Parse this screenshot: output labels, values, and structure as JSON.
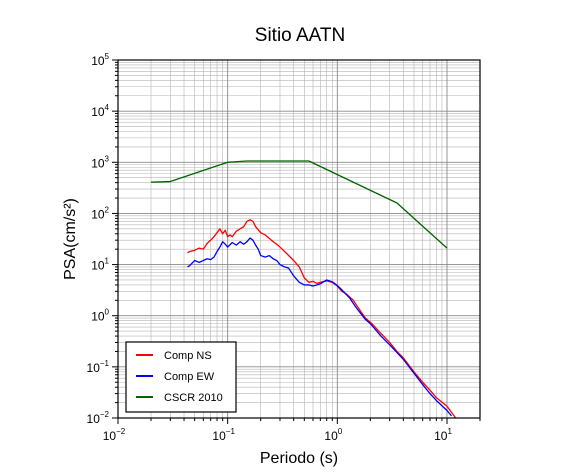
{
  "chart_data": {
    "type": "line",
    "title": "Sitio AATN",
    "xlabel": "Periodo (s)",
    "ylabel": "PSA(cm/s²)",
    "xscale": "log",
    "yscale": "log",
    "xlim": [
      0.01,
      20
    ],
    "ylim": [
      0.01,
      100000
    ],
    "grid": true,
    "legend_position": "bottom-left",
    "x_ticks": [
      {
        "base": "10",
        "exp": "−2"
      },
      {
        "base": "10",
        "exp": "−1"
      },
      {
        "base": "10",
        "exp": "0"
      },
      {
        "base": "10",
        "exp": "1"
      }
    ],
    "y_ticks": [
      {
        "base": "10",
        "exp": "−2"
      },
      {
        "base": "10",
        "exp": "−1"
      },
      {
        "base": "10",
        "exp": "0"
      },
      {
        "base": "10",
        "exp": "1"
      },
      {
        "base": "10",
        "exp": "2"
      },
      {
        "base": "10",
        "exp": "3"
      },
      {
        "base": "10",
        "exp": "4"
      },
      {
        "base": "10",
        "exp": "5"
      }
    ],
    "series": [
      {
        "name": "Comp NS",
        "color": "#ff0000",
        "points": [
          [
            0.043,
            17
          ],
          [
            0.045,
            18
          ],
          [
            0.05,
            19
          ],
          [
            0.055,
            21
          ],
          [
            0.06,
            20
          ],
          [
            0.065,
            26
          ],
          [
            0.07,
            30
          ],
          [
            0.075,
            35
          ],
          [
            0.08,
            42
          ],
          [
            0.085,
            50
          ],
          [
            0.09,
            40
          ],
          [
            0.095,
            47
          ],
          [
            0.1,
            35
          ],
          [
            0.105,
            38
          ],
          [
            0.11,
            35
          ],
          [
            0.12,
            45
          ],
          [
            0.13,
            50
          ],
          [
            0.14,
            55
          ],
          [
            0.15,
            70
          ],
          [
            0.16,
            75
          ],
          [
            0.17,
            70
          ],
          [
            0.18,
            55
          ],
          [
            0.2,
            42
          ],
          [
            0.22,
            38
          ],
          [
            0.25,
            30
          ],
          [
            0.28,
            25
          ],
          [
            0.3,
            22
          ],
          [
            0.35,
            16
          ],
          [
            0.4,
            12
          ],
          [
            0.45,
            9
          ],
          [
            0.5,
            5.5
          ],
          [
            0.55,
            4.5
          ],
          [
            0.6,
            4.7
          ],
          [
            0.65,
            4.3
          ],
          [
            0.7,
            4.5
          ],
          [
            0.8,
            4.8
          ],
          [
            0.9,
            4.5
          ],
          [
            1.0,
            3.8
          ],
          [
            1.1,
            3.0
          ],
          [
            1.2,
            2.7
          ],
          [
            1.4,
            2.0
          ],
          [
            1.6,
            1.3
          ],
          [
            1.8,
            0.9
          ],
          [
            2.0,
            0.75
          ],
          [
            2.5,
            0.45
          ],
          [
            3.0,
            0.3
          ],
          [
            3.5,
            0.2
          ],
          [
            4.0,
            0.15
          ],
          [
            5.0,
            0.08
          ],
          [
            6.0,
            0.05
          ],
          [
            7.0,
            0.035
          ],
          [
            8.0,
            0.025
          ],
          [
            10.0,
            0.017
          ],
          [
            12.0,
            0.01
          ]
        ]
      },
      {
        "name": "Comp EW",
        "color": "#0000ff",
        "points": [
          [
            0.043,
            9
          ],
          [
            0.045,
            9.5
          ],
          [
            0.05,
            12
          ],
          [
            0.055,
            11
          ],
          [
            0.06,
            12
          ],
          [
            0.065,
            13
          ],
          [
            0.07,
            12.5
          ],
          [
            0.075,
            14
          ],
          [
            0.08,
            18
          ],
          [
            0.085,
            22
          ],
          [
            0.09,
            28
          ],
          [
            0.095,
            25
          ],
          [
            0.1,
            22
          ],
          [
            0.11,
            27
          ],
          [
            0.12,
            24
          ],
          [
            0.13,
            28
          ],
          [
            0.14,
            25
          ],
          [
            0.15,
            28
          ],
          [
            0.16,
            33
          ],
          [
            0.17,
            30
          ],
          [
            0.18,
            24
          ],
          [
            0.19,
            20
          ],
          [
            0.2,
            15
          ],
          [
            0.22,
            14
          ],
          [
            0.24,
            15
          ],
          [
            0.26,
            13
          ],
          [
            0.28,
            12
          ],
          [
            0.3,
            10
          ],
          [
            0.33,
            9
          ],
          [
            0.36,
            8.5
          ],
          [
            0.4,
            6
          ],
          [
            0.45,
            4.5
          ],
          [
            0.5,
            4.0
          ],
          [
            0.55,
            4.0
          ],
          [
            0.6,
            3.8
          ],
          [
            0.7,
            4.2
          ],
          [
            0.8,
            5.0
          ],
          [
            0.9,
            4.6
          ],
          [
            1.0,
            3.9
          ],
          [
            1.1,
            3.2
          ],
          [
            1.3,
            2.2
          ],
          [
            1.5,
            1.4
          ],
          [
            1.8,
            0.85
          ],
          [
            2.0,
            0.7
          ],
          [
            2.5,
            0.4
          ],
          [
            3.0,
            0.27
          ],
          [
            3.5,
            0.19
          ],
          [
            4.0,
            0.14
          ],
          [
            5.0,
            0.075
          ],
          [
            6.0,
            0.045
          ],
          [
            7.0,
            0.03
          ],
          [
            8.0,
            0.022
          ],
          [
            10.0,
            0.014
          ],
          [
            11.0,
            0.011
          ]
        ]
      },
      {
        "name": "CSCR 2010",
        "color": "#006400",
        "points": [
          [
            0.02,
            410
          ],
          [
            0.03,
            420
          ],
          [
            0.1,
            1000
          ],
          [
            0.15,
            1060
          ],
          [
            0.55,
            1060
          ],
          [
            3.5,
            160
          ],
          [
            10.0,
            21
          ]
        ]
      }
    ]
  }
}
